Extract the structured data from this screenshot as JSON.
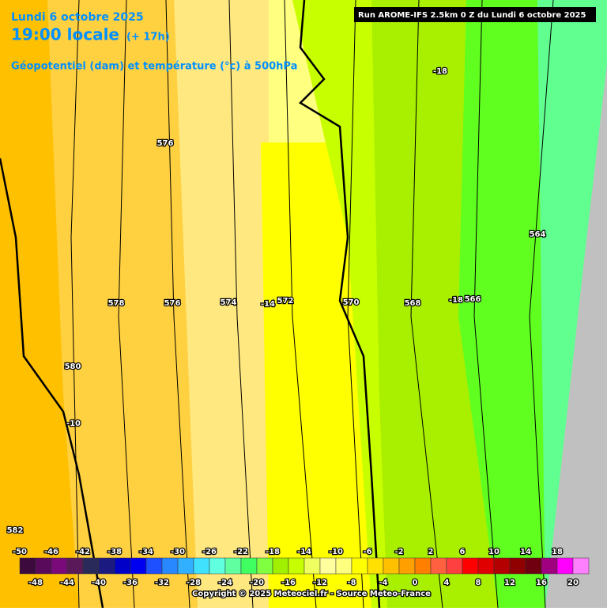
{
  "header": {
    "date": "Lundi 6 octobre 2025",
    "time": "19:00 locale",
    "lead": "(+ 17h)",
    "field": "Géopotentiel (dam) et température (°c) à 500hPa"
  },
  "run": "Run AROME-IFS 2.5km 0 Z du Lundi 6 octobre 2025",
  "contour_labels": [
    "-18",
    "576",
    "564",
    "578",
    "576",
    "574",
    "-14",
    "572",
    "570",
    "568",
    "-18",
    "566",
    "580",
    "-10",
    "582"
  ],
  "scale": {
    "top_labels": [
      -50,
      -46,
      -42,
      -38,
      -34,
      -30,
      -26,
      -22,
      -18,
      -14,
      -10,
      -6,
      -2,
      2,
      6,
      10,
      14,
      18
    ],
    "bottom_labels": [
      -48,
      -44,
      -40,
      -36,
      -32,
      -28,
      -24,
      -20,
      -16,
      -12,
      -8,
      -4,
      0,
      4,
      8,
      12,
      16,
      20
    ],
    "colors": [
      "#3c0a3c",
      "#5a0a5a",
      "#7a0a7a",
      "#5a1a5a",
      "#2a2a5a",
      "#1a1a80",
      "#0000c8",
      "#0000f0",
      "#1e50ff",
      "#2888ff",
      "#30b0ff",
      "#40e0ff",
      "#60ffe0",
      "#60ffa0",
      "#40ff60",
      "#80ff40",
      "#a0f000",
      "#c8ff00",
      "#f0ff60",
      "#ffffa0",
      "#ffff80",
      "#ffff00",
      "#ffe000",
      "#ffc000",
      "#ffa000",
      "#ff8000",
      "#ff6040",
      "#ff4040",
      "#ff0000",
      "#e00000",
      "#b40000",
      "#900000",
      "#700010",
      "#a00080",
      "#ff00ff",
      "#ff80ff"
    ]
  },
  "copyright": "Copyright © 2025 Meteociel.fr - Source Meteo-France"
}
